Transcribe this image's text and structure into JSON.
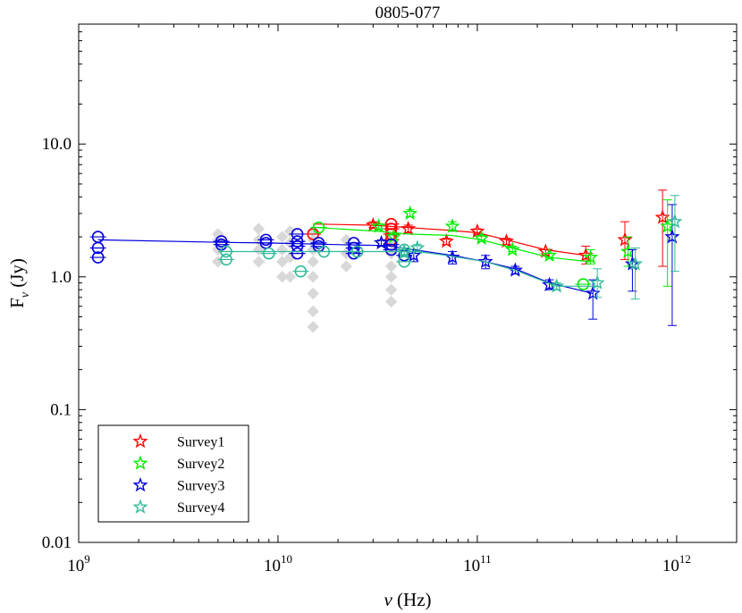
{
  "chart_data": {
    "type": "scatter",
    "title": "0805-077",
    "xlabel": "ν (Hz)",
    "ylabel": "F_ν (Jy)",
    "x_scale": "log",
    "y_scale": "log",
    "xlim": [
      1000000000.0,
      2000000000000.0
    ],
    "ylim": [
      0.01,
      80
    ],
    "x_ticks": [
      {
        "value": 1000000000.0,
        "base": "10",
        "exp": "9"
      },
      {
        "value": 10000000000.0,
        "base": "10",
        "exp": "10"
      },
      {
        "value": 100000000000.0,
        "base": "10",
        "exp": "11"
      },
      {
        "value": 1000000000000.0,
        "base": "10",
        "exp": "12"
      }
    ],
    "y_ticks": [
      {
        "value": 0.01,
        "label": "0.01"
      },
      {
        "value": 0.1,
        "label": "0.1"
      },
      {
        "value": 1,
        "label": "1.0"
      },
      {
        "value": 10,
        "label": "10.0"
      }
    ],
    "legend": {
      "position": "bottom-left",
      "entries": [
        {
          "name": "Survey1",
          "color": "#ff0000"
        },
        {
          "name": "Survey2",
          "color": "#00ee00"
        },
        {
          "name": "Survey3",
          "color": "#0000dd"
        },
        {
          "name": "Survey4",
          "color": "#33bb99"
        }
      ]
    },
    "background_points": {
      "color": "#d8d8d8",
      "points": [
        [
          5000000000.0,
          1.3
        ],
        [
          5000000000.0,
          1.6
        ],
        [
          5000000000.0,
          1.9
        ],
        [
          5000000000.0,
          2.1
        ],
        [
          8000000000.0,
          1.3
        ],
        [
          8000000000.0,
          1.6
        ],
        [
          8000000000.0,
          1.9
        ],
        [
          8000000000.0,
          2.3
        ],
        [
          10500000000.0,
          1.0
        ],
        [
          10500000000.0,
          1.3
        ],
        [
          10500000000.0,
          1.6
        ],
        [
          10500000000.0,
          2.0
        ],
        [
          11500000000.0,
          1.0
        ],
        [
          11500000000.0,
          1.4
        ],
        [
          11500000000.0,
          1.8
        ],
        [
          11500000000.0,
          2.2
        ],
        [
          15000000000.0,
          0.42
        ],
        [
          15000000000.0,
          0.55
        ],
        [
          15000000000.0,
          0.75
        ],
        [
          15000000000.0,
          1.0
        ],
        [
          15000000000.0,
          1.3
        ],
        [
          15000000000.0,
          1.6
        ],
        [
          15000000000.0,
          1.9
        ],
        [
          15000000000.0,
          2.2
        ],
        [
          22000000000.0,
          1.2
        ],
        [
          22000000000.0,
          1.5
        ],
        [
          22000000000.0,
          1.9
        ],
        [
          37000000000.0,
          0.65
        ],
        [
          37000000000.0,
          0.8
        ],
        [
          37000000000.0,
          1.0
        ],
        [
          37000000000.0,
          1.2
        ],
        [
          37000000000.0,
          1.5
        ],
        [
          37000000000.0,
          1.8
        ]
      ]
    },
    "series": [
      {
        "name": "Survey1",
        "color": "#ff0000",
        "line": [
          [
            15000000000.0,
            2.5
          ],
          [
            30000000000.0,
            2.45
          ],
          [
            45000000000.0,
            2.35
          ],
          [
            70000000000.0,
            2.25
          ],
          [
            100000000000.0,
            2.15
          ],
          [
            150000000000.0,
            1.85
          ],
          [
            220000000000.0,
            1.6
          ],
          [
            350000000000.0,
            1.45
          ]
        ],
        "circles": [
          [
            15000000000.0,
            2.1
          ],
          [
            37000000000.0,
            2.5
          ],
          [
            37000000000.0,
            2.3
          ],
          [
            37000000000.0,
            2.1
          ],
          [
            37000000000.0,
            1.9
          ]
        ],
        "stars": [
          {
            "x": 30000000000.0,
            "y": 2.45,
            "lo": 2.35,
            "hi": 2.6
          },
          {
            "x": 45000000000.0,
            "y": 2.3,
            "lo": 2.15,
            "hi": 2.45
          },
          {
            "x": 70000000000.0,
            "y": 1.85,
            "lo": 1.75,
            "hi": 1.95
          },
          {
            "x": 100000000000.0,
            "y": 2.2,
            "lo": 2.1,
            "hi": 2.3
          },
          {
            "x": 140000000000.0,
            "y": 1.85,
            "lo": 1.75,
            "hi": 1.95
          },
          {
            "x": 220000000000.0,
            "y": 1.55,
            "lo": 1.5,
            "hi": 1.6
          },
          {
            "x": 350000000000.0,
            "y": 1.45,
            "lo": 1.25,
            "hi": 1.7
          },
          {
            "x": 550000000000.0,
            "y": 1.9,
            "lo": 1.35,
            "hi": 2.6
          },
          {
            "x": 850000000000.0,
            "y": 2.8,
            "lo": 1.2,
            "hi": 4.5
          }
        ]
      },
      {
        "name": "Survey2",
        "color": "#00ee00",
        "line": [
          [
            16000000000.0,
            2.35
          ],
          [
            32000000000.0,
            2.2
          ],
          [
            45000000000.0,
            2.1
          ],
          [
            75000000000.0,
            2.05
          ],
          [
            105000000000.0,
            1.9
          ],
          [
            150000000000.0,
            1.65
          ],
          [
            230000000000.0,
            1.4
          ],
          [
            370000000000.0,
            1.3
          ]
        ],
        "circles": [
          [
            16000000000.0,
            2.35
          ],
          [
            340000000000.0,
            0.88
          ]
        ],
        "stars": [
          {
            "x": 32000000000.0,
            "y": 2.4,
            "lo": 2.3,
            "hi": 2.5
          },
          {
            "x": 38000000000.0,
            "y": 2.0,
            "lo": 1.9,
            "hi": 2.1
          },
          {
            "x": 46000000000.0,
            "y": 3.0,
            "lo": 2.85,
            "hi": 3.2
          },
          {
            "x": 75000000000.0,
            "y": 2.4,
            "lo": 2.2,
            "hi": 2.6
          },
          {
            "x": 105000000000.0,
            "y": 1.95,
            "lo": 1.85,
            "hi": 2.05
          },
          {
            "x": 150000000000.0,
            "y": 1.6,
            "lo": 1.55,
            "hi": 1.7
          },
          {
            "x": 230000000000.0,
            "y": 1.45,
            "lo": 1.4,
            "hi": 1.5
          },
          {
            "x": 370000000000.0,
            "y": 1.4,
            "lo": 1.25,
            "hi": 1.6
          },
          {
            "x": 570000000000.0,
            "y": 1.55,
            "lo": 1.2,
            "hi": 2.0
          },
          {
            "x": 900000000000.0,
            "y": 2.4,
            "lo": 0.85,
            "hi": 3.8
          }
        ]
      },
      {
        "name": "Survey3",
        "color": "#0000dd",
        "line": [
          [
            1250000000.0,
            1.9
          ],
          [
            5200000000.0,
            1.82
          ],
          [
            8700000000.0,
            1.8
          ],
          [
            12500000000.0,
            1.78
          ],
          [
            16000000000.0,
            1.76
          ],
          [
            24000000000.0,
            1.74
          ],
          [
            35000000000.0,
            1.72
          ],
          [
            48000000000.0,
            1.6
          ],
          [
            75000000000.0,
            1.45
          ],
          [
            110000000000.0,
            1.3
          ],
          [
            155000000000.0,
            1.15
          ],
          [
            230000000000.0,
            0.9
          ],
          [
            380000000000.0,
            0.75
          ]
        ],
        "circles": [
          [
            1250000000.0,
            2.0
          ],
          [
            1250000000.0,
            1.65
          ],
          [
            1250000000.0,
            1.4
          ],
          [
            5200000000.0,
            1.85
          ],
          [
            5200000000.0,
            1.75
          ],
          [
            8700000000.0,
            1.9
          ],
          [
            8700000000.0,
            1.8
          ],
          [
            12500000000.0,
            2.1
          ],
          [
            12500000000.0,
            1.85
          ],
          [
            12500000000.0,
            1.7
          ],
          [
            12500000000.0,
            1.5
          ],
          [
            16000000000.0,
            1.8
          ],
          [
            16000000000.0,
            1.7
          ],
          [
            24000000000.0,
            1.8
          ],
          [
            24000000000.0,
            1.65
          ],
          [
            24000000000.0,
            1.5
          ],
          [
            37000000000.0,
            1.75
          ],
          [
            37000000000.0,
            1.6
          ],
          [
            43000000000.0,
            1.45
          ]
        ],
        "stars": [
          {
            "x": 33000000000.0,
            "y": 1.8,
            "lo": 1.7,
            "hi": 1.9
          },
          {
            "x": 48000000000.0,
            "y": 1.45,
            "lo": 1.3,
            "hi": 1.6
          },
          {
            "x": 75000000000.0,
            "y": 1.4,
            "lo": 1.25,
            "hi": 1.55
          },
          {
            "x": 110000000000.0,
            "y": 1.3,
            "lo": 1.15,
            "hi": 1.45
          },
          {
            "x": 155000000000.0,
            "y": 1.12,
            "lo": 1.05,
            "hi": 1.2
          },
          {
            "x": 230000000000.0,
            "y": 0.87,
            "lo": 0.8,
            "hi": 0.95
          },
          {
            "x": 380000000000.0,
            "y": 0.75,
            "lo": 0.48,
            "hi": 0.95
          },
          {
            "x": 600000000000.0,
            "y": 1.25,
            "lo": 0.78,
            "hi": 1.6
          },
          {
            "x": 950000000000.0,
            "y": 2.0,
            "lo": 0.43,
            "hi": 3.5
          }
        ]
      },
      {
        "name": "Survey4",
        "color": "#33bb99",
        "line": [
          [
            5500000000.0,
            1.55
          ],
          [
            9000000000.0,
            1.55
          ],
          [
            13000000000.0,
            1.55
          ],
          [
            17000000000.0,
            1.55
          ],
          [
            25000000000.0,
            1.55
          ],
          [
            43000000000.0,
            1.55
          ],
          [
            50000000000.0,
            1.55
          ],
          [
            70000000000.0,
            1.45
          ],
          [
            110000000000.0,
            1.3
          ],
          [
            160000000000.0,
            1.1
          ],
          [
            250000000000.0,
            0.85
          ],
          [
            400000000000.0,
            0.85
          ]
        ],
        "circles": [
          [
            5500000000.0,
            1.55
          ],
          [
            5500000000.0,
            1.35
          ],
          [
            9000000000.0,
            1.5
          ],
          [
            13000000000.0,
            1.1
          ],
          [
            17000000000.0,
            1.55
          ],
          [
            25000000000.0,
            1.55
          ],
          [
            43000000000.0,
            1.6
          ],
          [
            43000000000.0,
            1.3
          ]
        ],
        "stars": [
          {
            "x": 43000000000.0,
            "y": 1.55,
            "lo": 1.45,
            "hi": 1.65
          },
          {
            "x": 50000000000.0,
            "y": 1.65,
            "lo": 1.55,
            "hi": 1.75
          },
          {
            "x": 250000000000.0,
            "y": 0.85,
            "lo": 0.8,
            "hi": 0.9
          },
          {
            "x": 400000000000.0,
            "y": 0.9,
            "lo": 0.7,
            "hi": 1.15
          },
          {
            "x": 620000000000.0,
            "y": 1.25,
            "lo": 0.68,
            "hi": 1.65
          },
          {
            "x": 980000000000.0,
            "y": 2.6,
            "lo": 1.1,
            "hi": 4.1
          }
        ]
      }
    ]
  }
}
